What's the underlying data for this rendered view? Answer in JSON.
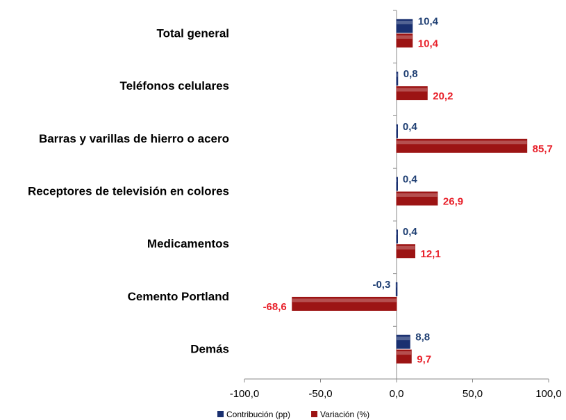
{
  "chart_data": {
    "type": "bar",
    "orientation": "horizontal",
    "categories": [
      "Total general",
      "Teléfonos celulares",
      "Barras y varillas de hierro o acero",
      "Receptores de televisión en colores",
      "Medicamentos",
      "Cemento Portland",
      "Demás"
    ],
    "series": [
      {
        "name": "Contribución (pp)",
        "color": "#1a3070",
        "label_color": "#1f3f73",
        "values": [
          10.4,
          0.8,
          0.4,
          0.4,
          0.4,
          -0.3,
          8.8
        ],
        "value_labels": [
          "10,4",
          "0,8",
          "0,4",
          "0,4",
          "0,4",
          "-0,3",
          "8,8"
        ]
      },
      {
        "name": "Variación (%)",
        "color": "#9c1414",
        "label_color": "#e8202a",
        "values": [
          10.4,
          20.2,
          85.7,
          26.9,
          12.1,
          -68.6,
          9.7
        ],
        "value_labels": [
          "10,4",
          "20,2",
          "85,7",
          "26,9",
          "12,1",
          "-68,6",
          "9,7"
        ]
      }
    ],
    "xlim": [
      -100,
      100
    ],
    "xticks": [
      {
        "value": -100,
        "label": "-100,0"
      },
      {
        "value": -50,
        "label": "-50,0"
      },
      {
        "value": 0,
        "label": "0,0"
      },
      {
        "value": 50,
        "label": "50,0"
      },
      {
        "value": 100,
        "label": "100,0"
      }
    ],
    "legend": "bottom"
  }
}
